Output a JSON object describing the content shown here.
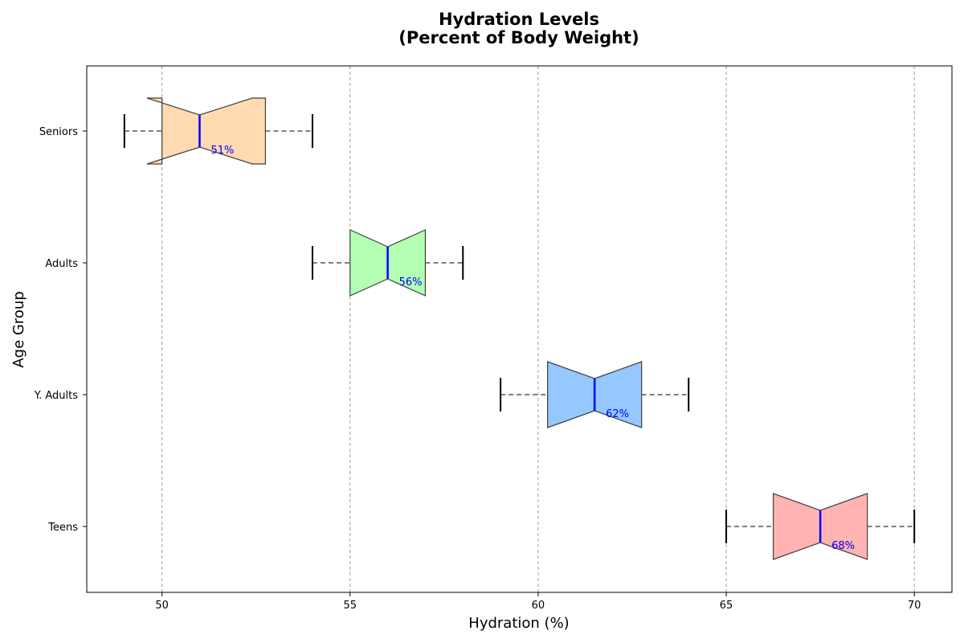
{
  "chart_data": {
    "type": "box",
    "orientation": "horizontal",
    "title_line1": "Hydration Levels",
    "title_line2": "(Percent of Body Weight)",
    "xlabel": "Hydration (%)",
    "ylabel": "Age Group",
    "xlim": [
      48,
      71
    ],
    "xticks": [
      50,
      55,
      60,
      65,
      70
    ],
    "grid": "vertical dashed",
    "categories": [
      "Teens",
      "Y. Adults",
      "Adults",
      "Seniors"
    ],
    "boxes": [
      {
        "category": "Teens",
        "whisker_low": 65,
        "q1": 66.25,
        "median": 67.5,
        "q3": 68.75,
        "whisker_high": 70,
        "notch_low": 66.25,
        "notch_high": 68.75,
        "median_label": "68%",
        "color": "#ffb3b3"
      },
      {
        "category": "Y. Adults",
        "whisker_low": 59,
        "q1": 60.25,
        "median": 61.5,
        "q3": 62.75,
        "whisker_high": 64,
        "notch_low": 60.25,
        "notch_high": 62.75,
        "median_label": "62%",
        "color": "#94c8ff"
      },
      {
        "category": "Adults",
        "whisker_low": 54,
        "q1": 55,
        "median": 56,
        "q3": 57,
        "whisker_high": 58,
        "notch_low": 55,
        "notch_high": 57,
        "median_label": "56%",
        "color": "#b3ffb3"
      },
      {
        "category": "Seniors",
        "whisker_low": 49,
        "q1": 50,
        "median": 51,
        "q3": 52.75,
        "whisker_high": 54,
        "notch_low": 49.6,
        "notch_high": 52.4,
        "median_label": "51%",
        "color": "#ffdab3"
      }
    ],
    "median_color": "#0000ff",
    "whisker_color": "#808080",
    "box_edge_color": "#404040"
  }
}
